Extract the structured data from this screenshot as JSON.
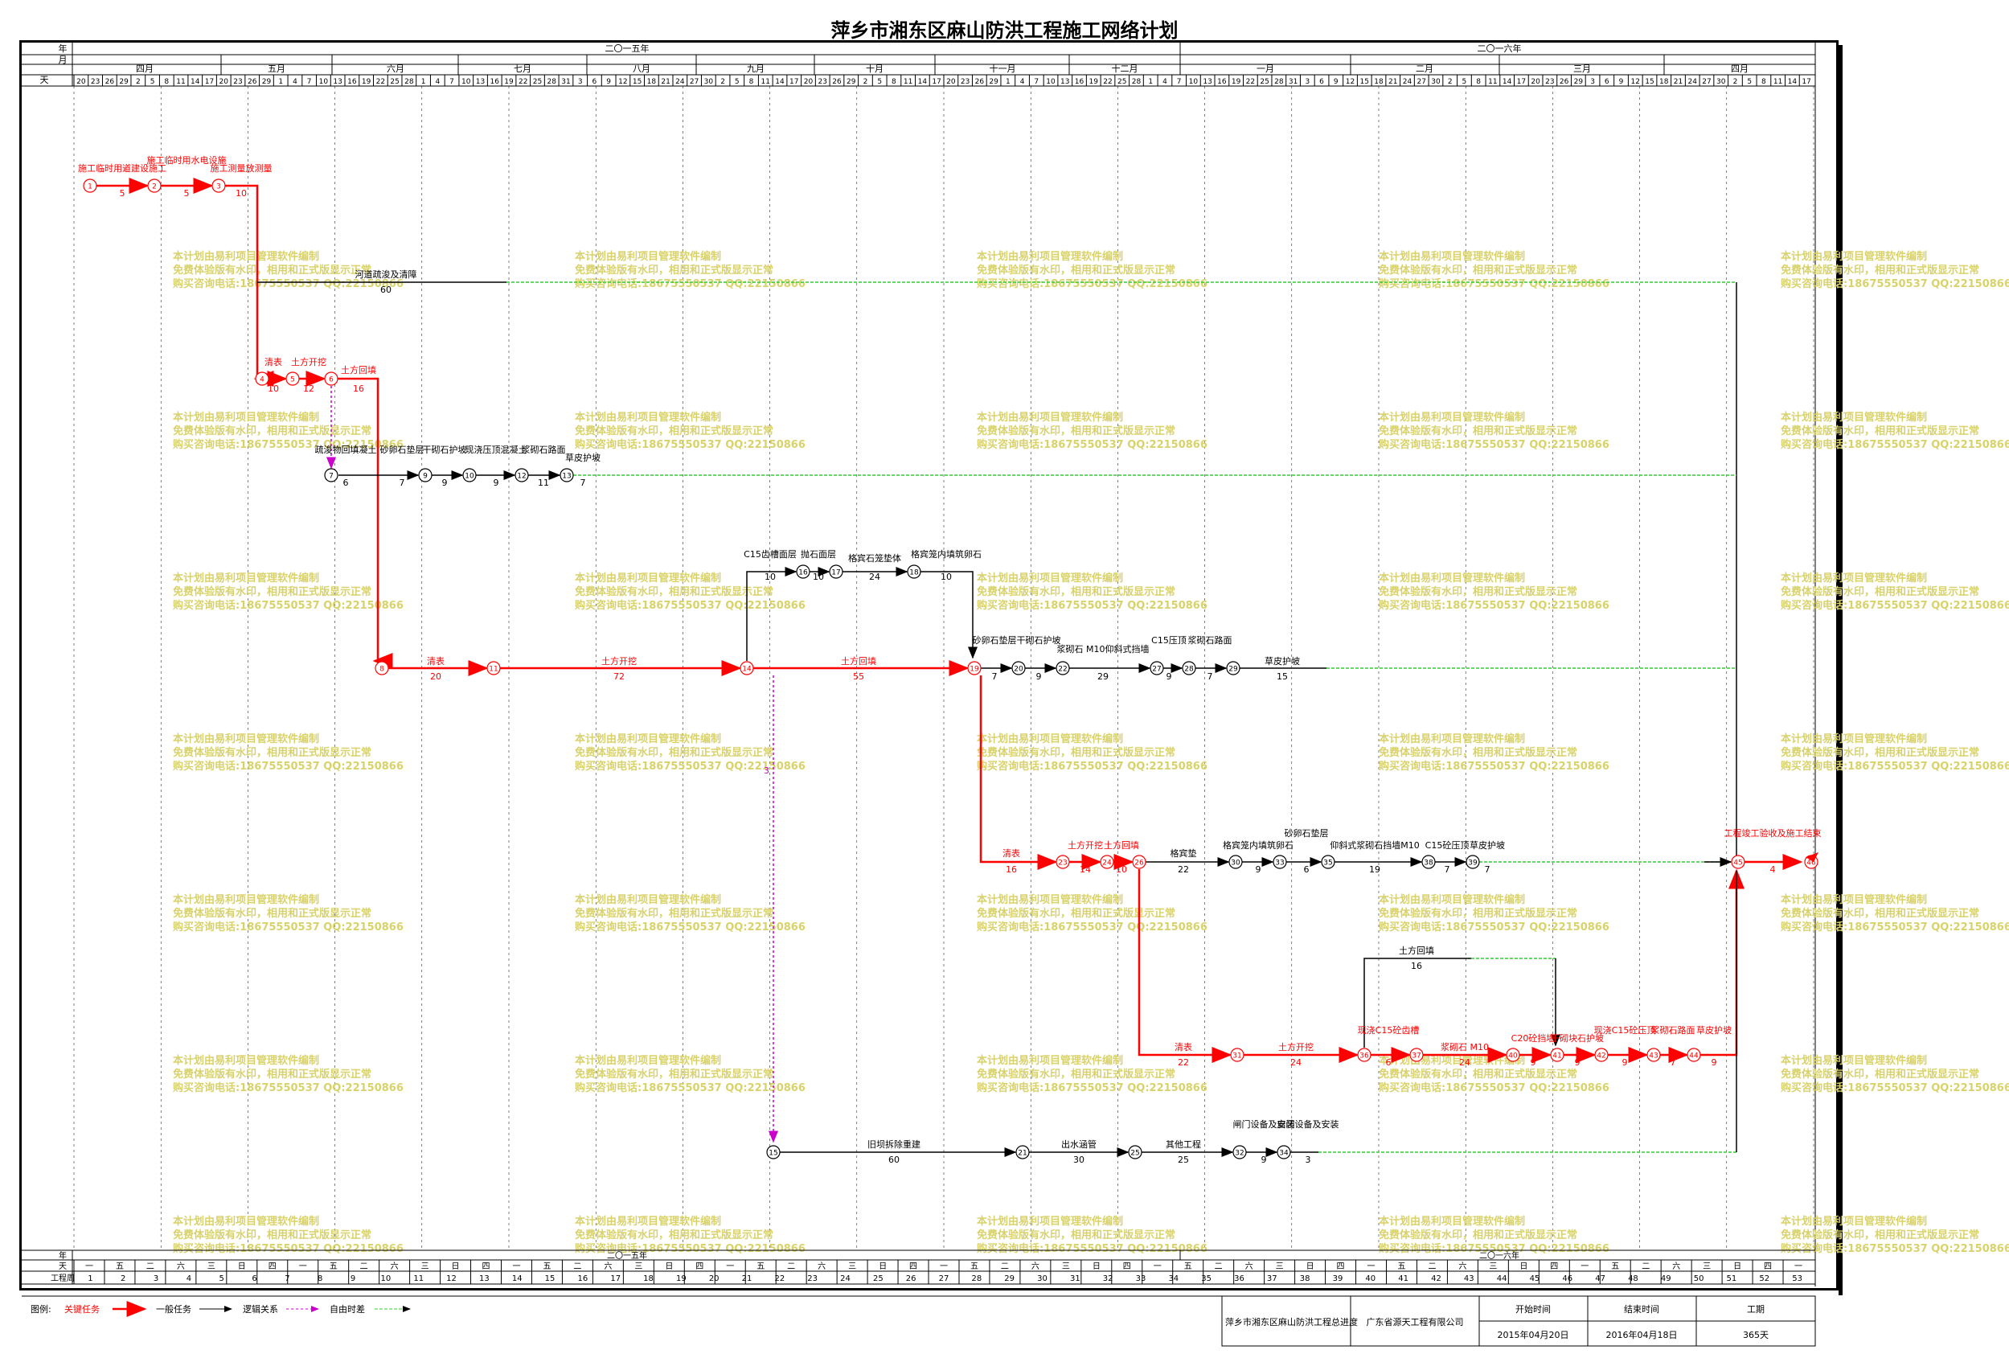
{
  "title": "萍乡市湘东区麻山防洪工程施工网络计划",
  "colors": {
    "critical": "#ff0000",
    "normal": "#000000",
    "logic": "#000000",
    "float": "#cc00cc",
    "slack": "#33cc33",
    "watermark": "#d9d26a"
  },
  "header": {
    "row_labels": {
      "year": "年",
      "month": "月",
      "day": "天",
      "week": "工程周"
    },
    "years": [
      "二〇一五年",
      "二〇一六年"
    ],
    "months": [
      "四月",
      "五月",
      "六月",
      "七月",
      "八月",
      "九月",
      "十月",
      "十一月",
      "十二月",
      "一月",
      "二月",
      "三月",
      "四月"
    ],
    "days": [
      "20",
      "23",
      "26",
      "29",
      "2",
      "5",
      "8",
      "11",
      "14",
      "17",
      "20",
      "23",
      "26",
      "29",
      "1",
      "4",
      "7",
      "10",
      "13",
      "16",
      "19",
      "22",
      "25",
      "28",
      "1",
      "4",
      "7",
      "10",
      "13",
      "16",
      "19",
      "22",
      "25",
      "28",
      "31",
      "3",
      "6",
      "9",
      "12",
      "15",
      "18",
      "21",
      "24",
      "27",
      "30",
      "2",
      "5",
      "8",
      "11",
      "14",
      "17",
      "20",
      "23",
      "26",
      "29",
      "2",
      "5",
      "8",
      "11",
      "14",
      "17",
      "20",
      "23",
      "26",
      "29",
      "1",
      "4",
      "7",
      "10",
      "13",
      "16",
      "19",
      "22",
      "25",
      "28",
      "1",
      "4",
      "7",
      "10",
      "13",
      "16",
      "19",
      "22",
      "25",
      "28",
      "31",
      "3",
      "6",
      "9",
      "12",
      "15",
      "18",
      "21",
      "24",
      "27",
      "30",
      "2",
      "5",
      "8",
      "11",
      "14",
      "17",
      "20",
      "23",
      "26",
      "29",
      "3",
      "6",
      "9",
      "12",
      "15",
      "18",
      "21",
      "24",
      "27",
      "30",
      "2",
      "5",
      "8",
      "11",
      "14",
      "17"
    ],
    "weekdays": [
      "一",
      "五",
      "二",
      "六",
      "三",
      "日",
      "四",
      "一",
      "五",
      "二",
      "六",
      "三",
      "日",
      "四",
      "一",
      "五",
      "二",
      "六",
      "三",
      "日",
      "四",
      "一",
      "五",
      "二",
      "六",
      "三",
      "日",
      "四",
      "一",
      "五",
      "二",
      "六",
      "三",
      "日",
      "四",
      "一",
      "五",
      "二",
      "六",
      "三",
      "日",
      "四",
      "一",
      "五",
      "二",
      "六",
      "三",
      "日",
      "四",
      "一",
      "五",
      "二",
      "六",
      "三",
      "日",
      "四",
      "一"
    ],
    "weeks": [
      "1",
      "2",
      "3",
      "4",
      "5",
      "6",
      "7",
      "8",
      "9",
      "10",
      "11",
      "12",
      "13",
      "14",
      "15",
      "16",
      "17",
      "18",
      "19",
      "20",
      "21",
      "22",
      "23",
      "24",
      "25",
      "26",
      "27",
      "28",
      "29",
      "30",
      "31",
      "32",
      "33",
      "34",
      "35",
      "36",
      "37",
      "38",
      "39",
      "40",
      "41",
      "42",
      "43",
      "44",
      "45",
      "46",
      "47",
      "48",
      "49",
      "50",
      "51",
      "52",
      "53"
    ]
  },
  "watermark": {
    "line1": "本计划由易利项目管理软件编制",
    "line2": "免费体验版有水印，相用和正式版显示正常",
    "line3": "购买咨询电话:18675550537 QQ:22150866"
  },
  "nodes": [
    "1",
    "2",
    "3",
    "4",
    "5",
    "6",
    "7",
    "8",
    "9",
    "10",
    "11",
    "12",
    "13",
    "14",
    "15",
    "16",
    "17",
    "18",
    "19",
    "20",
    "21",
    "22",
    "23",
    "24",
    "25",
    "26",
    "27",
    "28",
    "29",
    "30",
    "31",
    "32",
    "33",
    "34",
    "35",
    "36",
    "37",
    "38",
    "39",
    "40",
    "41",
    "42",
    "43",
    "44",
    "45",
    "46"
  ],
  "activities": [
    {
      "name": "施工临时用道建设施工",
      "dur": "5",
      "critical": true
    },
    {
      "name": "施工临时用水电设施",
      "dur": "5",
      "critical": true
    },
    {
      "name": "施工测量放测量",
      "dur": "10",
      "critical": true
    },
    {
      "name": "河道疏浚及清障",
      "dur": "60",
      "critical": false
    },
    {
      "name": "清表",
      "dur": "10",
      "critical": true
    },
    {
      "name": "土方开挖",
      "dur": "12",
      "critical": true
    },
    {
      "name": "土方回填",
      "dur": "16",
      "critical": true
    },
    {
      "name": "疏浚物回填凝土",
      "dur": "6",
      "critical": false
    },
    {
      "name": "砂卵石垫层",
      "dur": "7",
      "critical": false
    },
    {
      "name": "干砌石护坡",
      "dur": "9",
      "critical": false
    },
    {
      "name": "现浇压顶混凝土",
      "dur": "9",
      "critical": false
    },
    {
      "name": "浆砌石路面",
      "dur": "11",
      "critical": false
    },
    {
      "name": "草皮护坡",
      "dur": "7",
      "critical": false
    },
    {
      "name": "清表",
      "dur": "20",
      "critical": true
    },
    {
      "name": "土方开挖",
      "dur": "72",
      "critical": true
    },
    {
      "name": "C15齿槽面层",
      "dur": "10",
      "critical": false
    },
    {
      "name": "抛石面层",
      "dur": "10",
      "critical": false
    },
    {
      "name": "格宾石笼垫体",
      "dur": "24",
      "critical": false
    },
    {
      "name": "格宾笼内填筑卵石",
      "dur": "10",
      "critical": false
    },
    {
      "name": "土方回填",
      "dur": "55",
      "critical": true
    },
    {
      "name": "砂卵石垫层",
      "dur": "7",
      "critical": false
    },
    {
      "name": "干砌石护坡",
      "dur": "9",
      "critical": false
    },
    {
      "name": "浆砌石 M10仰斜式挡墙",
      "dur": "29",
      "critical": false
    },
    {
      "name": "C15压顶",
      "dur": "9",
      "critical": false
    },
    {
      "name": "浆砌石路面",
      "dur": "7",
      "critical": false
    },
    {
      "name": "草皮护坡",
      "dur": "15",
      "critical": false
    },
    {
      "name": "清表",
      "dur": "16",
      "critical": true
    },
    {
      "name": "土方开挖",
      "dur": "14",
      "critical": true
    },
    {
      "name": "土方回填",
      "dur": "10",
      "critical": true
    },
    {
      "name": "格宾垫",
      "dur": "22",
      "critical": false
    },
    {
      "name": "格宾笼内填筑卵石",
      "dur": "9",
      "critical": false
    },
    {
      "name": "砂卵石垫层",
      "dur": "6",
      "critical": false
    },
    {
      "name": "仰斜式浆砌石挡墙M10",
      "dur": "19",
      "critical": false
    },
    {
      "name": "C15砼压顶",
      "dur": "7",
      "critical": false
    },
    {
      "name": "草皮护坡",
      "dur": "7",
      "critical": false
    },
    {
      "name": "清表",
      "dur": "22",
      "critical": true
    },
    {
      "name": "土方开挖",
      "dur": "24",
      "critical": true
    },
    {
      "name": "现浇C15砼齿槽",
      "dur": "6",
      "critical": true
    },
    {
      "name": "浆砌石 M10",
      "dur": "24",
      "critical": true
    },
    {
      "name": "C20砼挡墙",
      "dur": "9",
      "critical": true
    },
    {
      "name": "土方回填",
      "dur": "16",
      "critical": false
    },
    {
      "name": "干砌块石护坡",
      "dur": "9",
      "critical": true
    },
    {
      "name": "现浇C15砼压顶",
      "dur": "9",
      "critical": true
    },
    {
      "name": "浆砌石路面",
      "dur": "7",
      "critical": true
    },
    {
      "name": "草皮护坡",
      "dur": "9",
      "critical": true
    },
    {
      "name": "旧坝拆除重建",
      "dur": "60",
      "critical": false
    },
    {
      "name": "出水涵管",
      "dur": "30",
      "critical": false
    },
    {
      "name": "其他工程",
      "dur": "25",
      "critical": false
    },
    {
      "name": "闸门设备及安装",
      "dur": "9",
      "critical": false
    },
    {
      "name": "启闭设备及安装",
      "dur": "3",
      "critical": false
    },
    {
      "name": "工程竣工验收及施工结束",
      "dur": "4",
      "critical": true
    }
  ],
  "float_label": "3",
  "legend": {
    "title": "图例:",
    "items": [
      "关键任务",
      "一般任务",
      "逻辑关系",
      "自由时差"
    ]
  },
  "footer": {
    "project": "萍乡市湘东区麻山防洪工程总进度",
    "company": "广东省源天工程有限公司",
    "start_label": "开始时间",
    "end_label": "结束时间",
    "duration_label": "工期",
    "start": "2015年04月20日",
    "end": "2016年04月18日",
    "duration": "365天"
  }
}
